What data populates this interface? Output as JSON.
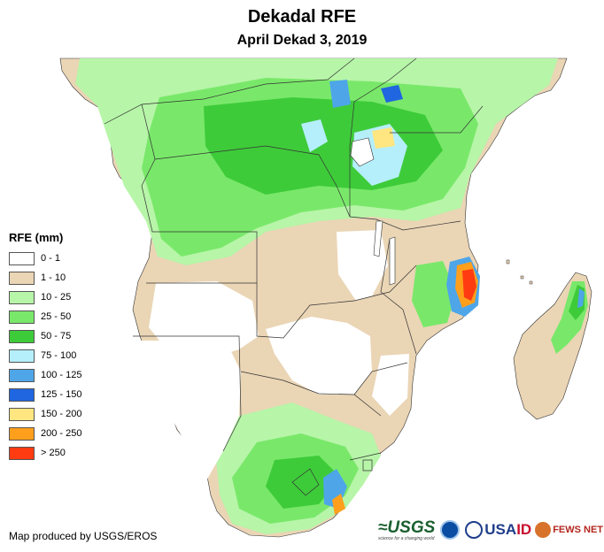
{
  "title": "Dekadal RFE",
  "subtitle": "April Dekad 3, 2019",
  "legend": {
    "title": "RFE (mm)",
    "items": [
      {
        "label": "0 - 1",
        "color": "#ffffff"
      },
      {
        "label": "1 - 10",
        "color": "#ead5b5"
      },
      {
        "label": "10 - 25",
        "color": "#b7f5a8"
      },
      {
        "label": "25 - 50",
        "color": "#79e86a"
      },
      {
        "label": "50 - 75",
        "color": "#3ecb3a"
      },
      {
        "label": "75 - 100",
        "color": "#b5effb"
      },
      {
        "label": "100 - 125",
        "color": "#4ea6e8"
      },
      {
        "label": "125 - 150",
        "color": "#1f66e0"
      },
      {
        "label": "150 - 200",
        "color": "#ffe680"
      },
      {
        "label": "200 - 250",
        "color": "#ff9f1c"
      },
      {
        "label": "> 250",
        "color": "#ff3b12"
      }
    ]
  },
  "credit": "Map produced by USGS/EROS",
  "logos": {
    "usgs": "≈USGS",
    "usgs_tagline": "science for a changing world",
    "usaid": [
      "USA",
      "ID"
    ],
    "fews": "FEWS NET"
  }
}
